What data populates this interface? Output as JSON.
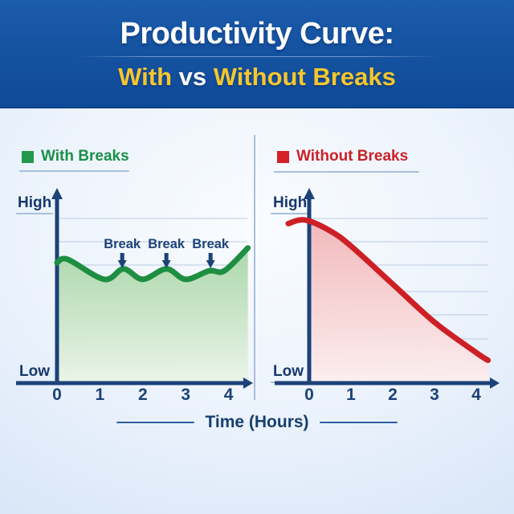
{
  "header": {
    "title": "Productivity Curve:",
    "subtitle": {
      "with": "With",
      "vs": " vs ",
      "without": "Without Breaks"
    }
  },
  "legend": {
    "left": "With Breaks",
    "right": "Without Breaks"
  },
  "axis": {
    "high": "High",
    "low": "Low",
    "x_title": "Time (Hours)"
  },
  "colors": {
    "banner_blue": "#14519f",
    "accent_yellow": "#f6c62d",
    "navy_text": "#1c4278",
    "green_line": "#1e8e41",
    "red_line": "#cd2026",
    "gridline": "#c5d3e8"
  },
  "chart_data": [
    {
      "type": "area",
      "title": "With Breaks",
      "color": "#1e8e41",
      "fill_top": "#a6d4a4",
      "fill_bottom": "#eaf5e7",
      "x_label": "Time (Hours)",
      "x_ticks": [
        "0",
        "1",
        "2",
        "3",
        "4"
      ],
      "y_high": "High",
      "y_low": "Low",
      "x_range": [
        0,
        4.5
      ],
      "grid": true,
      "points": [
        [
          0,
          0.632
        ],
        [
          0.25,
          0.65
        ],
        [
          1.1,
          0.545
        ],
        [
          1.55,
          0.6
        ],
        [
          2.0,
          0.545
        ],
        [
          2.55,
          0.6
        ],
        [
          3.0,
          0.545
        ],
        [
          3.55,
          0.59
        ],
        [
          3.9,
          0.59
        ],
        [
          4.45,
          0.71
        ]
      ],
      "annotations": [
        {
          "label": "Break",
          "x": 1.52
        },
        {
          "label": "Break",
          "x": 2.55
        },
        {
          "label": "Break",
          "x": 3.58
        }
      ]
    },
    {
      "type": "area",
      "title": "Without Breaks",
      "color": "#cd2026",
      "fill_top": "#f2b3b5",
      "fill_bottom": "#fdeeee",
      "x_label": "Time (Hours)",
      "x_ticks": [
        "0",
        "1",
        "2",
        "3",
        "4"
      ],
      "y_high": "High",
      "y_low": "Low",
      "x_range": [
        0,
        4.5
      ],
      "grid": true,
      "points": [
        [
          -0.5,
          0.838
        ],
        [
          -0.1,
          0.857
        ],
        [
          0.5,
          0.8
        ],
        [
          1,
          0.72
        ],
        [
          2,
          0.52
        ],
        [
          3,
          0.32
        ],
        [
          4,
          0.16
        ],
        [
          4.28,
          0.12
        ]
      ],
      "annotations": []
    }
  ]
}
